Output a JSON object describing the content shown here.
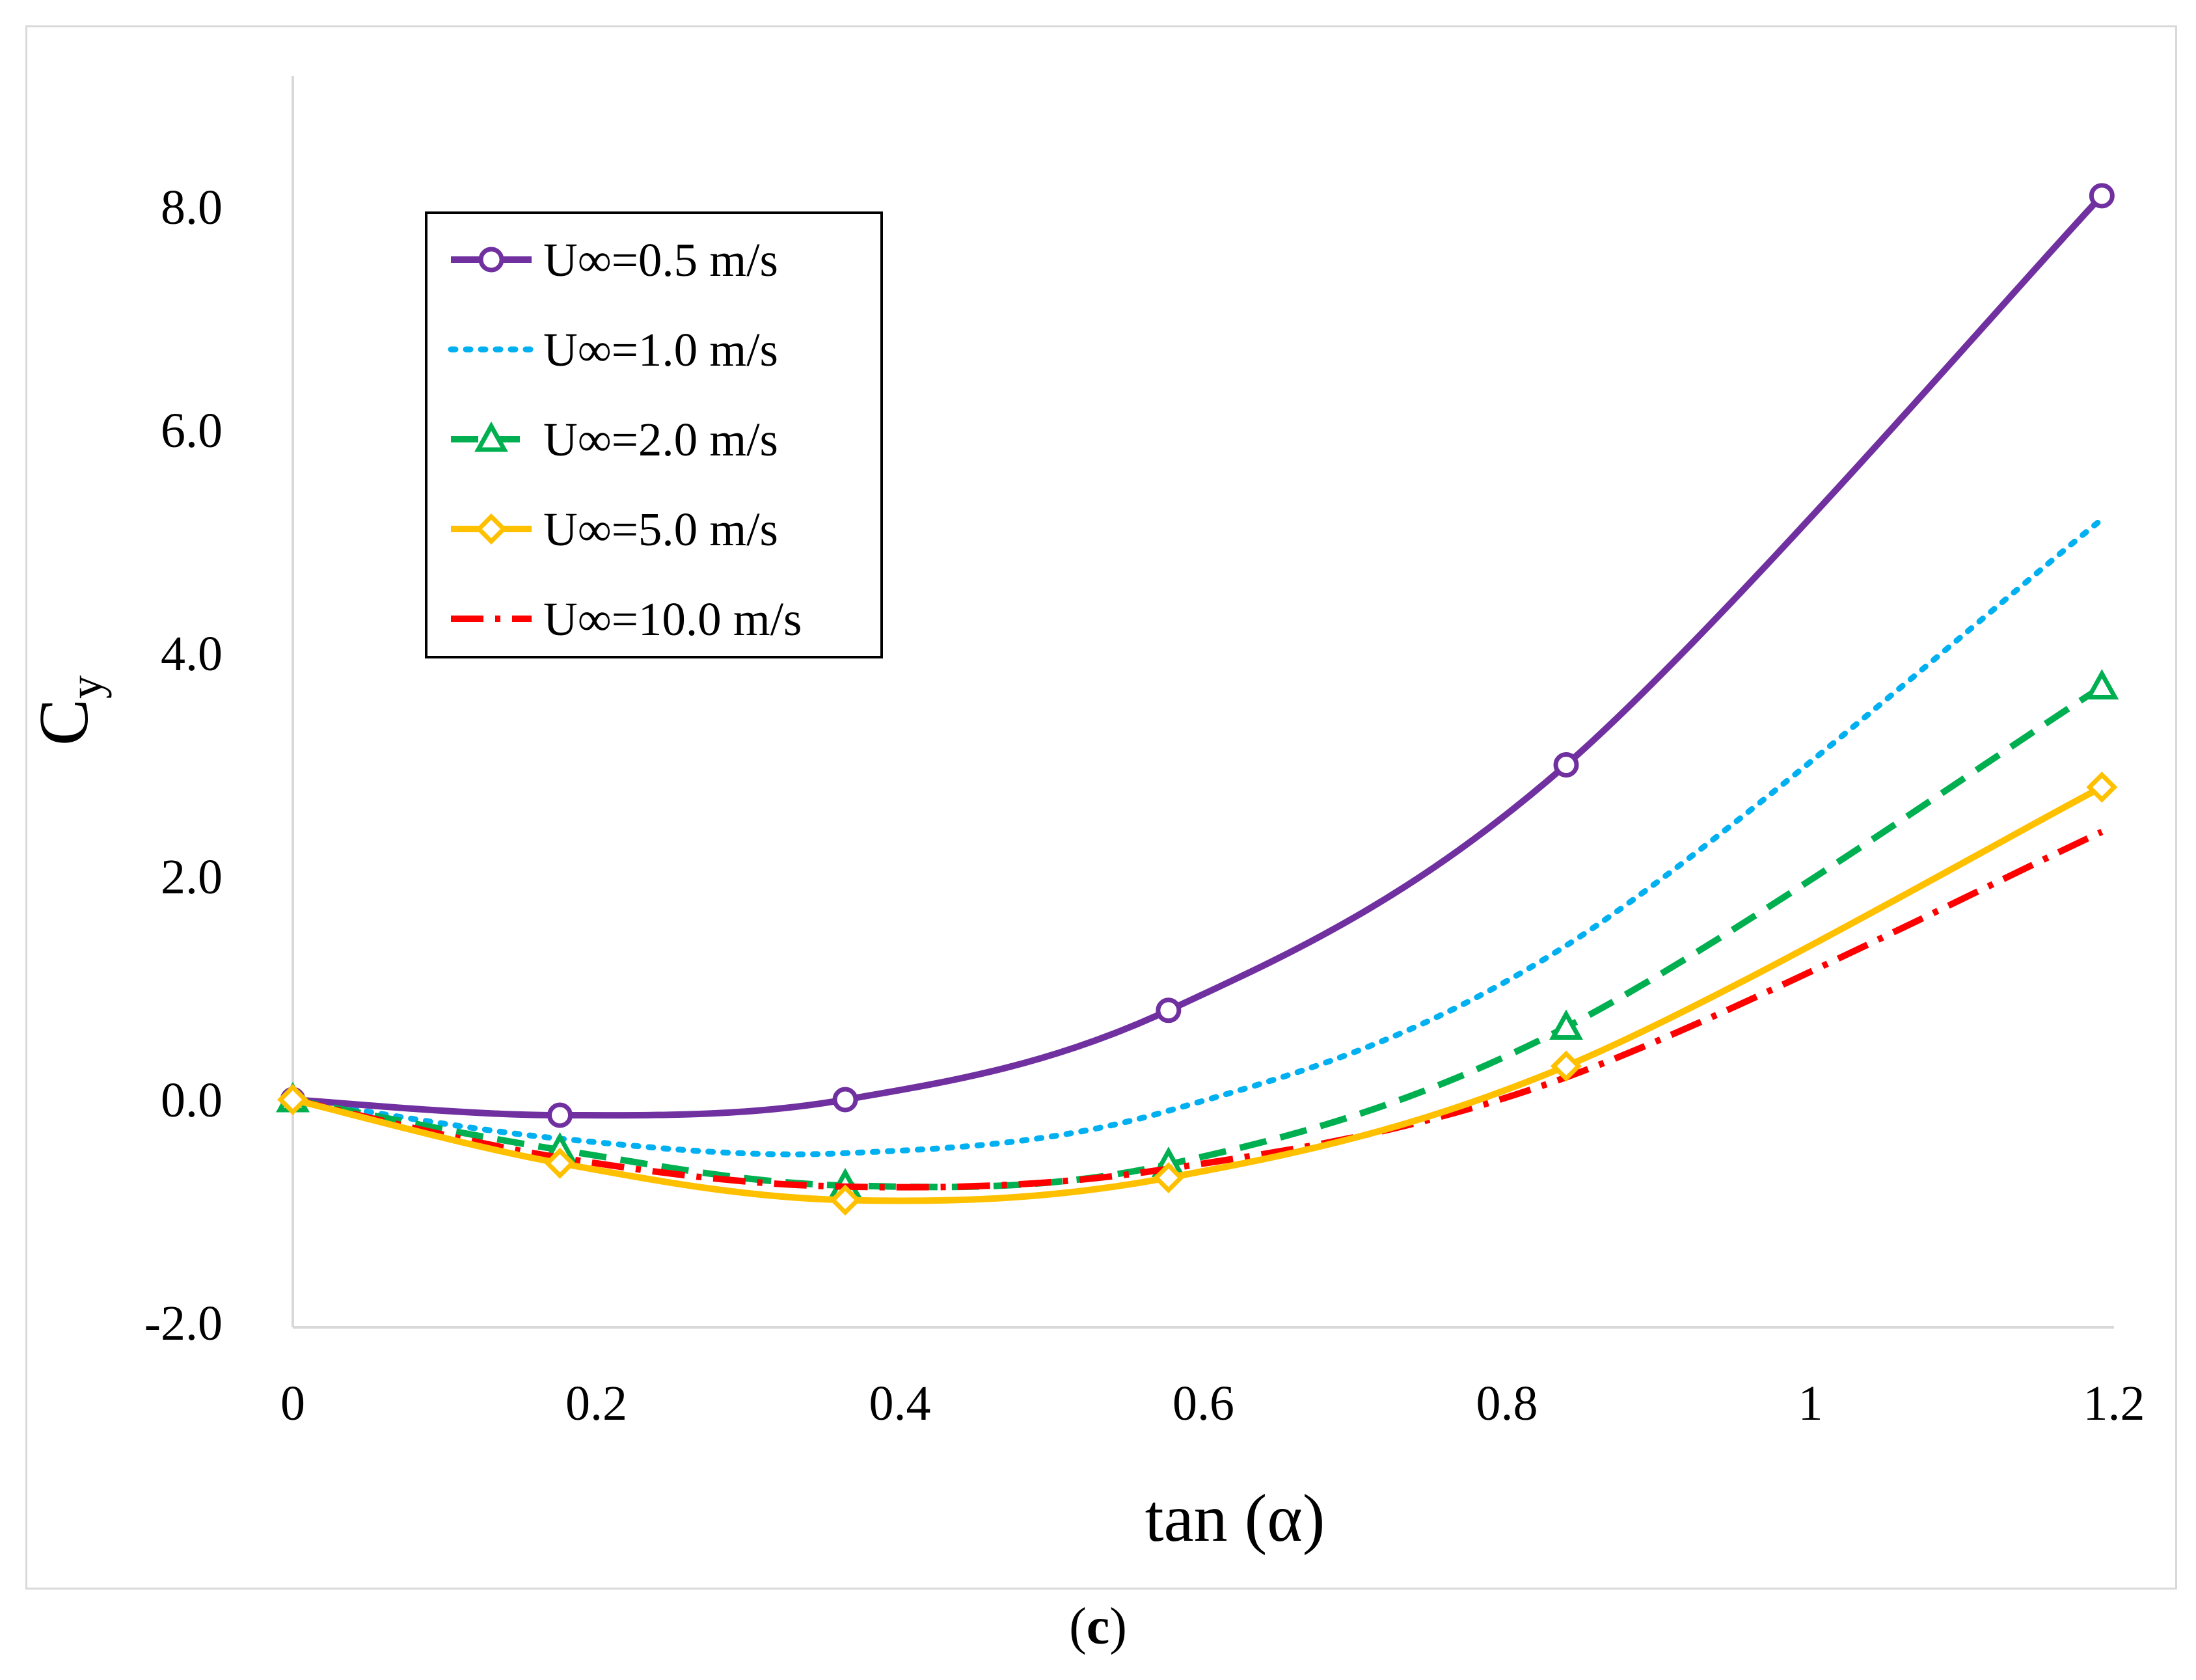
{
  "chart_data": {
    "type": "line",
    "title": "",
    "xlabel": "tan (α)",
    "ylabel": "C",
    "ylabel_subscript": "y",
    "xlim": [
      0,
      1.2
    ],
    "ylim": [
      -2.0,
      9.0
    ],
    "x_ticks": [
      0,
      0.2,
      0.4,
      0.6,
      0.8,
      1,
      1.2
    ],
    "x_tick_labels": [
      "0",
      "0.2",
      "0.4",
      "0.6",
      "0.8",
      "1",
      "1.2"
    ],
    "y_ticks": [
      -2,
      0,
      2,
      4,
      6,
      8
    ],
    "y_tick_labels": [
      "-2.0",
      "0.0",
      "2.0",
      "4.0",
      "6.0",
      "8.0"
    ],
    "grid": false,
    "legend_position": "top-left",
    "x": [
      0,
      0.176,
      0.364,
      0.577,
      0.839,
      1.192
    ],
    "series": [
      {
        "name": "U∞=0.5 m/s",
        "values": [
          0,
          -0.14,
          0,
          0.8,
          3.0,
          8.1
        ],
        "color": "#7030a0",
        "dash": "solid",
        "marker": "circle"
      },
      {
        "name": "U∞=1.0 m/s",
        "values": [
          0,
          -0.35,
          -0.48,
          -0.1,
          1.38,
          5.2
        ],
        "color": "#00b0f0",
        "dash": "dotted",
        "marker": "none"
      },
      {
        "name": "U∞=2.0 m/s",
        "values": [
          0,
          -0.45,
          -0.77,
          -0.58,
          0.65,
          3.7
        ],
        "color": "#00b050",
        "dash": "dashed",
        "marker": "triangle"
      },
      {
        "name": "U∞=5.0 m/s",
        "values": [
          0,
          -0.57,
          -0.9,
          -0.7,
          0.3,
          2.8
        ],
        "color": "#ffc000",
        "dash": "solid",
        "marker": "diamond"
      },
      {
        "name": "U∞=10.0 m/s",
        "values": [
          0,
          -0.52,
          -0.78,
          -0.62,
          0.2,
          2.4
        ],
        "color": "#ff0000",
        "dash": "dashdot",
        "marker": "none"
      }
    ]
  },
  "caption": {
    "open": "(",
    "letter": "c",
    "close": ")"
  }
}
